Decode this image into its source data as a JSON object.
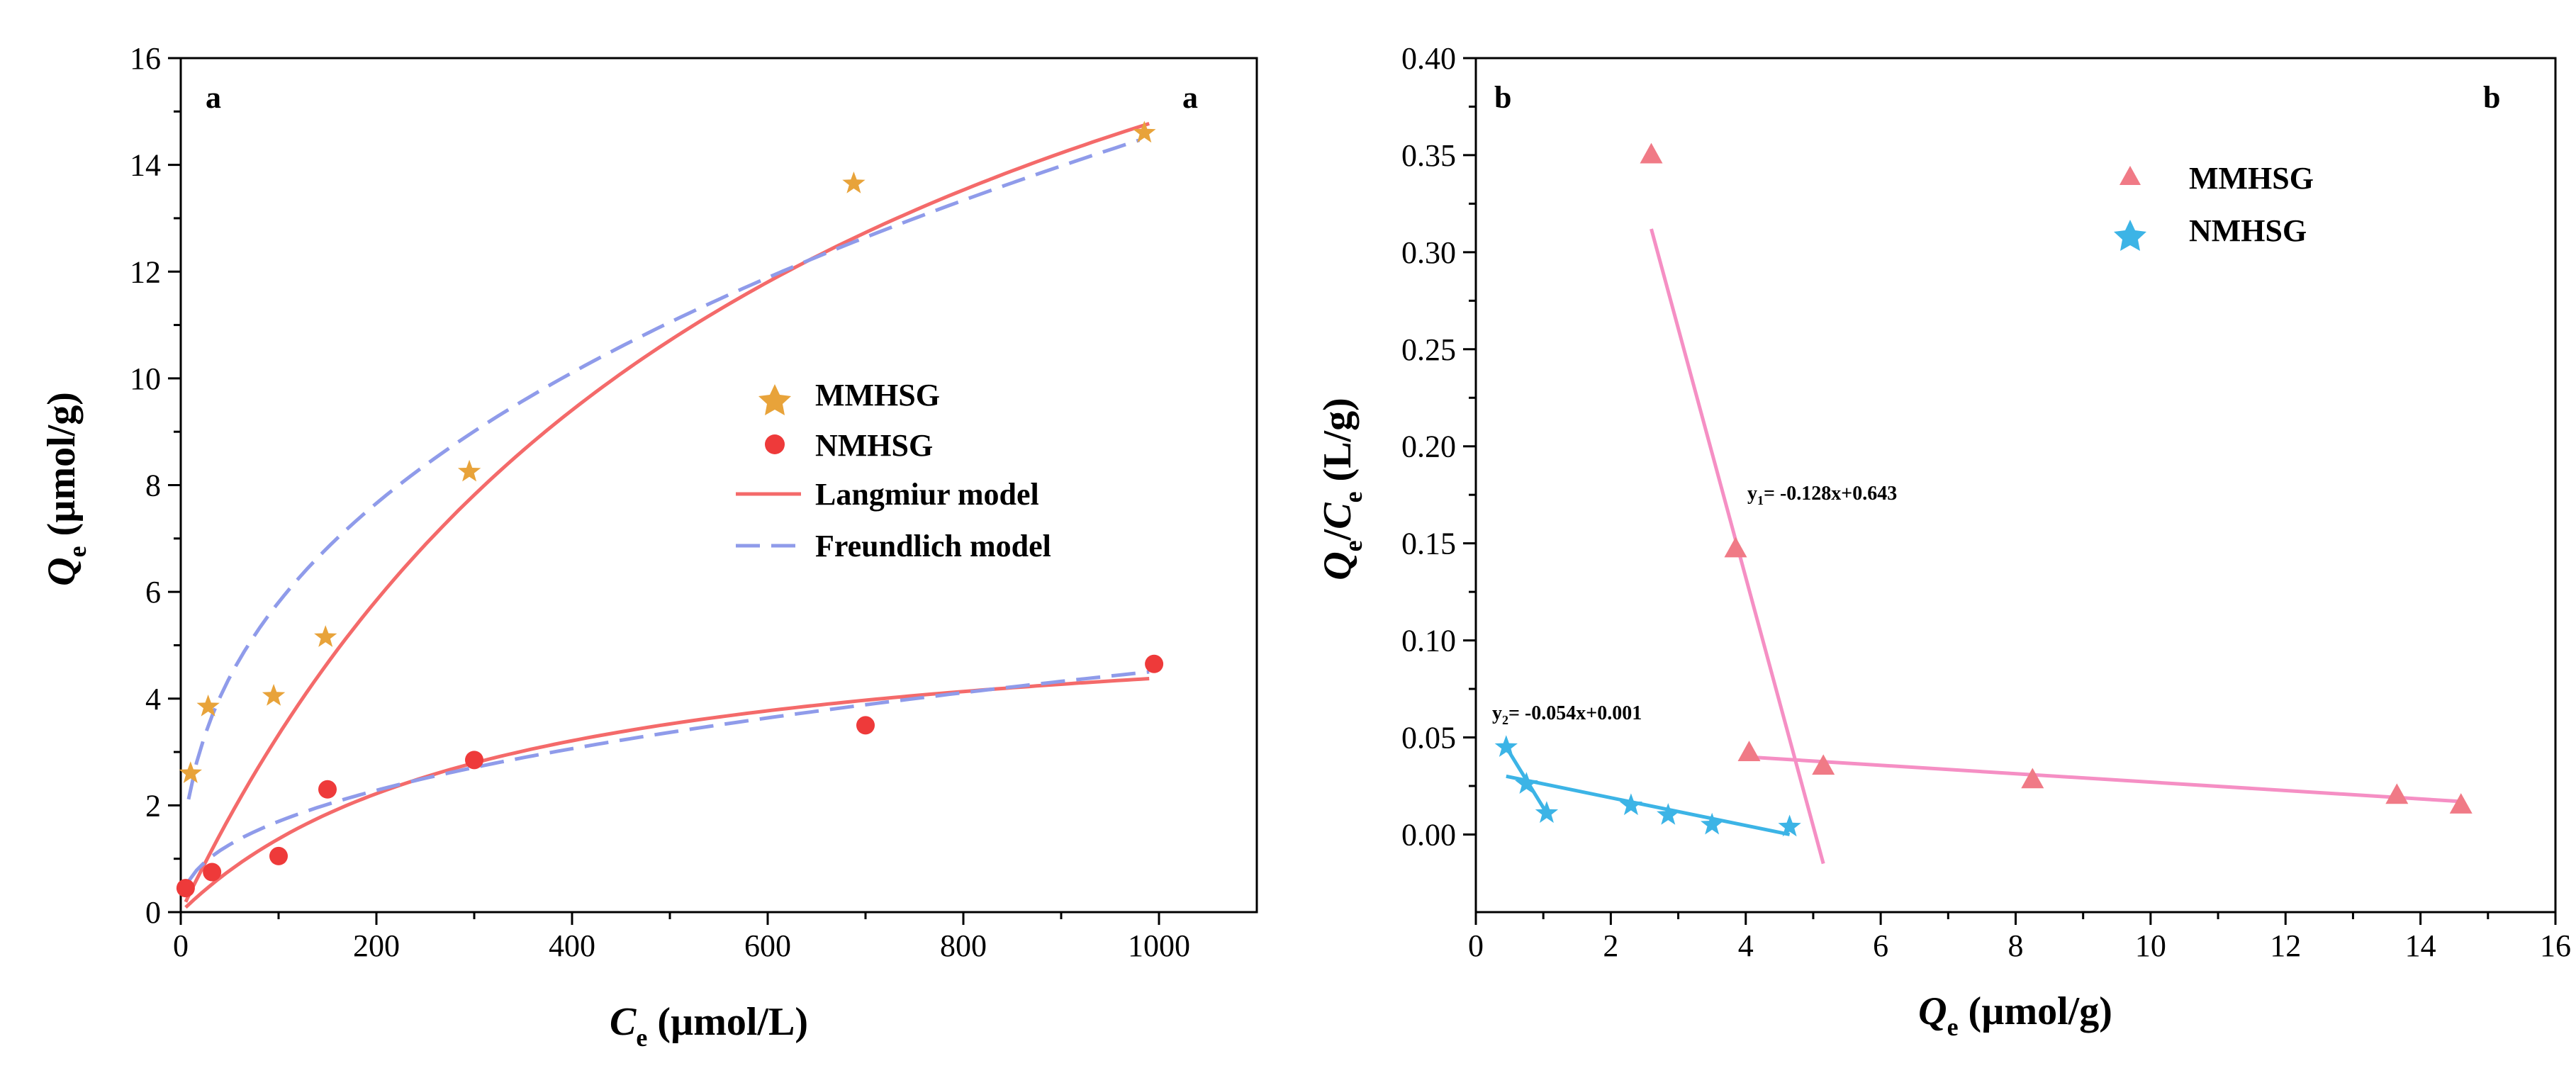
{
  "chart_data": [
    {
      "panel": "a",
      "type": "scatter",
      "panel_label": "a",
      "xlabel": {
        "symbol": "C",
        "sub": "e",
        "unit": "(µmol/L)"
      },
      "ylabel": {
        "symbol": "Q",
        "sub": "e",
        "unit": "(µmol/g)"
      },
      "xlim": [
        0,
        1100
      ],
      "ylim": [
        0,
        16
      ],
      "xticks": [
        0,
        200,
        400,
        600,
        800,
        1000
      ],
      "xtick_labels": [
        "0",
        "200",
        "400",
        "600",
        "800",
        "1000"
      ],
      "yticks": [
        0,
        2,
        4,
        6,
        8,
        10,
        12,
        14,
        16
      ],
      "ytick_labels": [
        "0",
        "2",
        "4",
        "6",
        "8",
        "10",
        "12",
        "14",
        "16"
      ],
      "grid": false,
      "legend_position": "center-right",
      "series": [
        {
          "name": "MMHSG",
          "marker": "star",
          "color": "#e8a33a",
          "x": [
            10,
            28,
            95,
            148,
            295,
            688,
            985
          ],
          "y": [
            2.6,
            3.85,
            4.05,
            5.15,
            8.25,
            13.65,
            14.6
          ]
        },
        {
          "name": "NMHSG",
          "marker": "circle",
          "color": "#ee3a3a",
          "x": [
            5,
            32,
            100,
            150,
            300,
            700,
            995
          ],
          "y": [
            0.45,
            0.75,
            1.05,
            2.3,
            2.85,
            3.5,
            4.65
          ]
        }
      ],
      "fits": [
        {
          "name": "Langmiur model",
          "style": "solid",
          "color": "#f46a6a",
          "curves": [
            {
              "model": "langmuir",
              "qmax": 24.1,
              "K": 0.0016,
              "x_range": [
                5,
                990
              ]
            },
            {
              "model": "langmuir",
              "qmax": 5.8,
              "K": 0.0031,
              "x_range": [
                5,
                990
              ]
            }
          ]
        },
        {
          "name": "Freundlich model",
          "style": "dashed",
          "color": "#8f9bea",
          "curves": [
            {
              "model": "freundlich",
              "Kf": 0.92,
              "n_inv": 0.4,
              "x_range": [
                8,
                980
              ]
            },
            {
              "model": "freundlich",
              "Kf": 0.24,
              "n_inv": 0.425,
              "x_range": [
                8,
                990
              ]
            }
          ]
        }
      ]
    },
    {
      "panel": "b",
      "type": "scatter",
      "panel_label": "b",
      "xlabel": {
        "symbol": "Q",
        "sub": "e",
        "unit": "(µmol/g)"
      },
      "ylabel": {
        "symbol": "Q",
        "sub": "e",
        "mid": "/",
        "symbol2": "C",
        "sub2": "e",
        "unit": "(L/g)"
      },
      "xlim": [
        0,
        16
      ],
      "ylim": [
        -0.04,
        0.4
      ],
      "xticks": [
        0,
        2,
        4,
        6,
        8,
        10,
        12,
        14,
        16
      ],
      "xtick_labels": [
        "0",
        "2",
        "4",
        "6",
        "8",
        "10",
        "12",
        "14",
        "16"
      ],
      "yticks": [
        0,
        0.05,
        0.1,
        0.15,
        0.2,
        0.25,
        0.3,
        0.35,
        0.4
      ],
      "ytick_labels": [
        "0.00",
        "0.05",
        "0.10",
        "0.15",
        "0.20",
        "0.25",
        "0.30",
        "0.35",
        "0.40"
      ],
      "grid": false,
      "legend_position": "top-right",
      "series": [
        {
          "name": "MMHSG",
          "marker": "triangle",
          "color": "#f07a86",
          "x": [
            2.6,
            3.85,
            4.05,
            5.15,
            8.25,
            13.65,
            14.6
          ],
          "y": [
            0.35,
            0.147,
            0.042,
            0.035,
            0.028,
            0.02,
            0.015
          ]
        },
        {
          "name": "NMHSG",
          "marker": "star",
          "color": "#3cb4e6",
          "x": [
            0.45,
            0.75,
            1.05,
            2.3,
            2.85,
            3.5,
            4.65
          ],
          "y": [
            0.045,
            0.026,
            0.011,
            0.015,
            0.01,
            0.005,
            0.004
          ]
        }
      ],
      "fit_lines": [
        {
          "color": "#f58fc4",
          "x": [
            2.6,
            5.15
          ],
          "y": [
            0.312,
            -0.015
          ]
        },
        {
          "color": "#f58fc4",
          "x": [
            4.0,
            14.6
          ],
          "y": [
            0.04,
            0.017
          ]
        },
        {
          "color": "#3cb4e6",
          "x": [
            0.45,
            1.05
          ],
          "y": [
            0.045,
            0.011
          ]
        },
        {
          "color": "#3cb4e6",
          "x": [
            0.45,
            4.65
          ],
          "y": [
            0.03,
            0.0
          ]
        }
      ],
      "equations": [
        {
          "y": "y",
          "sub": "1",
          "rest": "= -0.128x+0.643"
        },
        {
          "y": "y",
          "sub": "2",
          "rest": "= -0.054x+0.001"
        }
      ]
    }
  ]
}
